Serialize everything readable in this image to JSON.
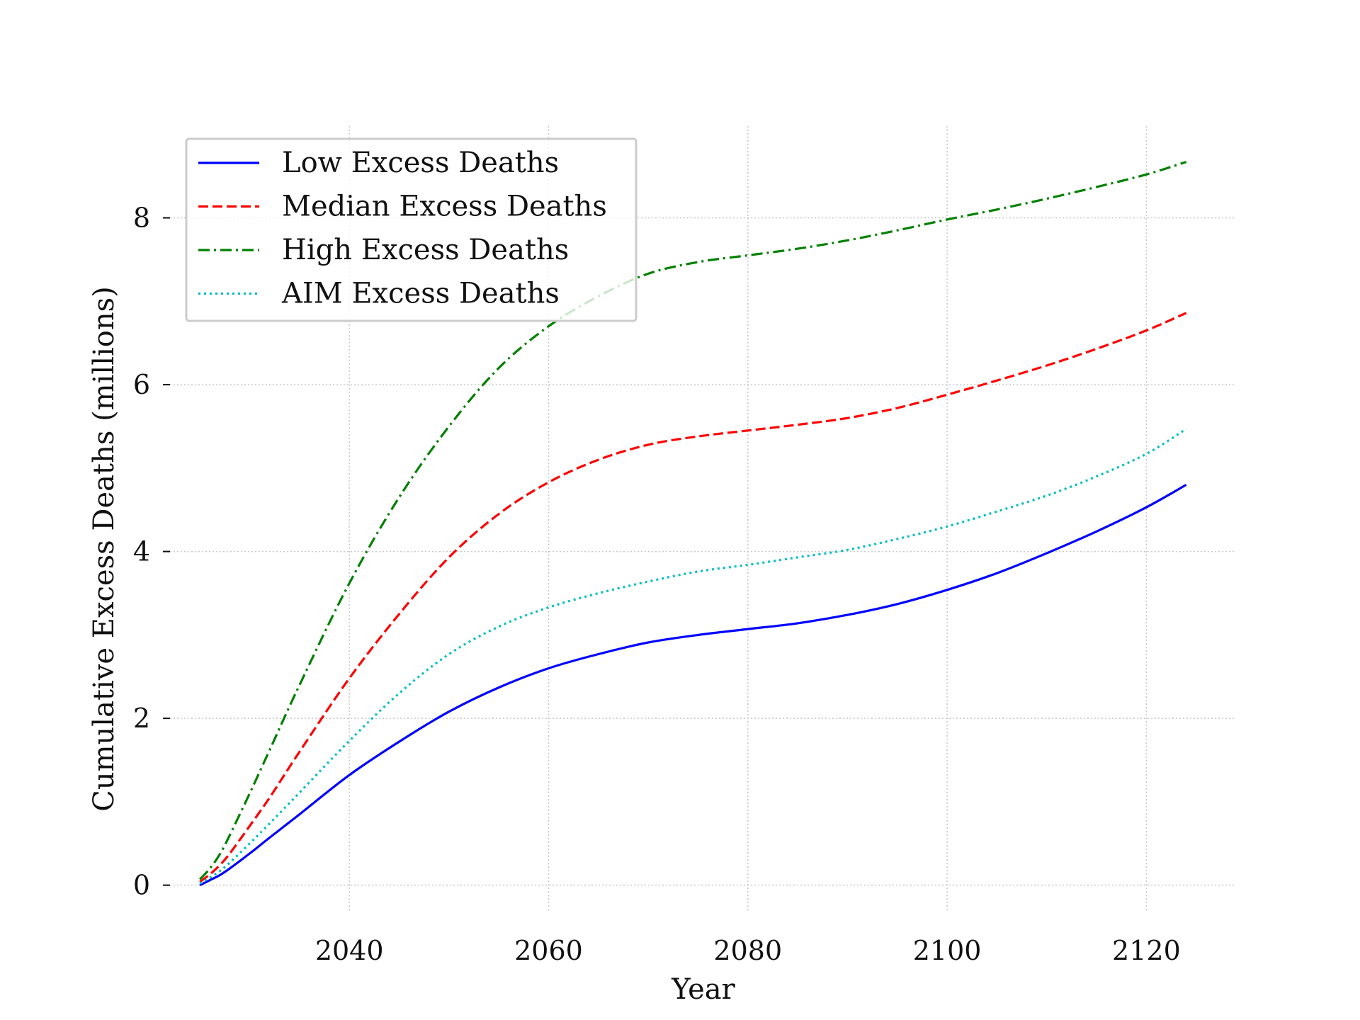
{
  "chart_data": {
    "type": "line",
    "title": "",
    "xlabel": "Year",
    "ylabel": "Cumulative Excess Deaths (millions)",
    "xlim": [
      2022,
      2129
    ],
    "ylim": [
      -0.3,
      9.1
    ],
    "xticks": [
      2040,
      2060,
      2080,
      2100,
      2120
    ],
    "yticks": [
      0,
      2,
      4,
      6,
      8
    ],
    "grid": true,
    "legend_position": "top-left",
    "x": [
      2025,
      2026,
      2027,
      2028,
      2030,
      2032,
      2035,
      2040,
      2045,
      2050,
      2055,
      2060,
      2065,
      2070,
      2075,
      2080,
      2085,
      2090,
      2095,
      2100,
      2105,
      2110,
      2115,
      2120,
      2124
    ],
    "series": [
      {
        "name": "Low Excess Deaths",
        "color": "#0000ff",
        "dash": "solid",
        "values": [
          0.0,
          0.06,
          0.12,
          0.2,
          0.38,
          0.57,
          0.85,
          1.32,
          1.72,
          2.08,
          2.37,
          2.6,
          2.77,
          2.91,
          3.0,
          3.07,
          3.14,
          3.24,
          3.37,
          3.54,
          3.74,
          3.98,
          4.24,
          4.53,
          4.8
        ]
      },
      {
        "name": "Median Excess Deaths",
        "color": "#ff0000",
        "dash": "dashed",
        "values": [
          0.04,
          0.13,
          0.24,
          0.38,
          0.71,
          1.05,
          1.6,
          2.48,
          3.25,
          3.93,
          4.45,
          4.83,
          5.1,
          5.28,
          5.38,
          5.45,
          5.52,
          5.6,
          5.72,
          5.88,
          6.05,
          6.23,
          6.43,
          6.65,
          6.86
        ]
      },
      {
        "name": "High Excess Deaths",
        "color": "#008000",
        "dash": "dashdot",
        "values": [
          0.07,
          0.2,
          0.37,
          0.6,
          1.1,
          1.62,
          2.4,
          3.62,
          4.65,
          5.5,
          6.2,
          6.7,
          7.06,
          7.33,
          7.47,
          7.55,
          7.63,
          7.73,
          7.85,
          7.98,
          8.1,
          8.23,
          8.37,
          8.52,
          8.67
        ]
      },
      {
        "name": "AIM Excess Deaths",
        "color": "#00bfbf",
        "dash": "dotted",
        "values": [
          0.02,
          0.09,
          0.17,
          0.27,
          0.5,
          0.74,
          1.11,
          1.73,
          2.3,
          2.77,
          3.1,
          3.33,
          3.5,
          3.64,
          3.76,
          3.84,
          3.93,
          4.02,
          4.15,
          4.3,
          4.48,
          4.67,
          4.9,
          5.17,
          5.47
        ]
      }
    ]
  }
}
